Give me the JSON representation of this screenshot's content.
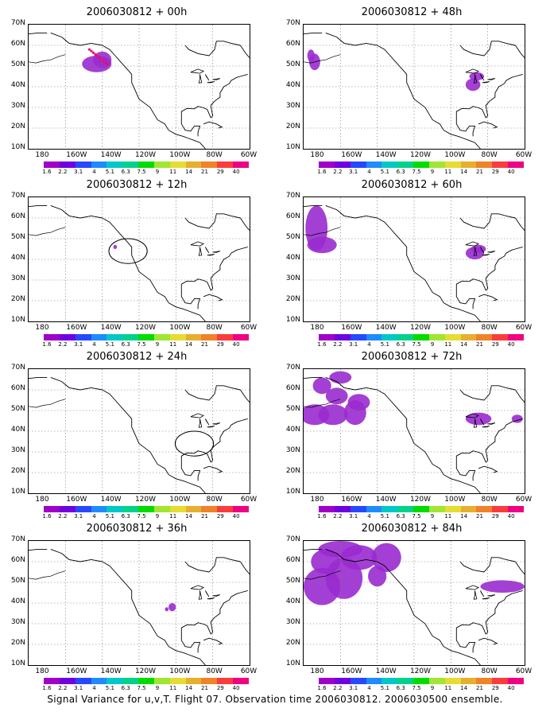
{
  "caption": "Signal Variance for u,v,T. Flight 07. Observation time 2006030812. 2006030500 ensemble.",
  "y_ticks": [
    "70N",
    "60N",
    "50N",
    "40N",
    "30N",
    "20N",
    "10N"
  ],
  "x_ticks": [
    "180",
    "160W",
    "140W",
    "120W",
    "100W",
    "80W",
    "60W"
  ],
  "colorbar": {
    "labels": [
      "1.6",
      "2.2",
      "3.1",
      "4",
      "5.1",
      "6.3",
      "7.5",
      "9",
      "11",
      "14",
      "21",
      "29",
      "40"
    ],
    "colors": [
      "#a000c8",
      "#7000e0",
      "#2848ff",
      "#1e8cff",
      "#00c8c8",
      "#00d28c",
      "#00dc00",
      "#a0e632",
      "#e6dc32",
      "#e6af2d",
      "#f08228",
      "#fa3c3c",
      "#f00082"
    ]
  },
  "panels": [
    {
      "title": "2006030812 + 00h"
    },
    {
      "title": "2006030812 + 48h"
    },
    {
      "title": "2006030812 + 12h"
    },
    {
      "title": "2006030812 + 60h"
    },
    {
      "title": "2006030812 + 24h"
    },
    {
      "title": "2006030812 + 72h"
    },
    {
      "title": "2006030812 + 36h"
    },
    {
      "title": "2006030812 + 84h"
    }
  ]
}
